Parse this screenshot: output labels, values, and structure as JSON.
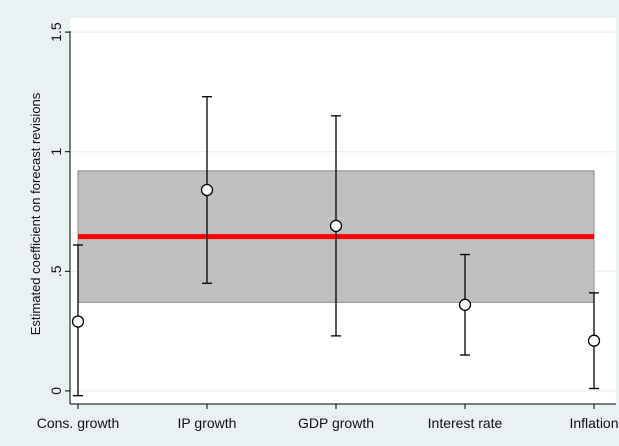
{
  "chart_data": {
    "type": "scatter",
    "ylabel": "Estimated coefficient on forecast revisions",
    "xlabel": "",
    "ylim": [
      0,
      1.5
    ],
    "yticks": [
      {
        "value": 0,
        "label": "0"
      },
      {
        "value": 0.5,
        "label": ".5"
      },
      {
        "value": 1,
        "label": "1"
      },
      {
        "value": 1.5,
        "label": "1.5"
      }
    ],
    "categories": [
      "Cons. growth",
      "IP growth",
      "GDP growth",
      "Interest rate",
      "Inflation"
    ],
    "series": [
      {
        "points": [
          {
            "category": "Cons. growth",
            "estimate": 0.29,
            "ci_low": -0.02,
            "ci_high": 0.61
          },
          {
            "category": "IP growth",
            "estimate": 0.84,
            "ci_low": 0.45,
            "ci_high": 1.23
          },
          {
            "category": "GDP growth",
            "estimate": 0.69,
            "ci_low": 0.23,
            "ci_high": 1.15
          },
          {
            "category": "Interest rate",
            "estimate": 0.36,
            "ci_low": 0.15,
            "ci_high": 0.57
          },
          {
            "category": "Inflation",
            "estimate": 0.21,
            "ci_low": 0.01,
            "ci_high": 0.41
          }
        ]
      }
    ],
    "pooled_estimate": {
      "value": 0.645,
      "ci_low": 0.37,
      "ci_high": 0.92
    },
    "grid": true,
    "legend": "none",
    "colors": {
      "background": "#eaf1f3",
      "plot_background": "#ffffff",
      "band": "#c0c0c0",
      "pooled_line": "#ff0000",
      "markers": "#000000",
      "grid": "#e6ecee"
    }
  }
}
